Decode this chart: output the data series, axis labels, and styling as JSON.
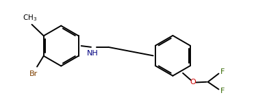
{
  "bg_color": "#ffffff",
  "line_color": "#000000",
  "label_color_default": "#000000",
  "label_color_br": "#7f4000",
  "label_color_nh": "#000080",
  "label_color_o": "#cc0000",
  "label_color_f": "#336600",
  "line_width": 1.4,
  "fig_width": 3.9,
  "fig_height": 1.52,
  "dpi": 100,
  "xlim": [
    0,
    10.5
  ],
  "ylim": [
    0,
    4.2
  ]
}
